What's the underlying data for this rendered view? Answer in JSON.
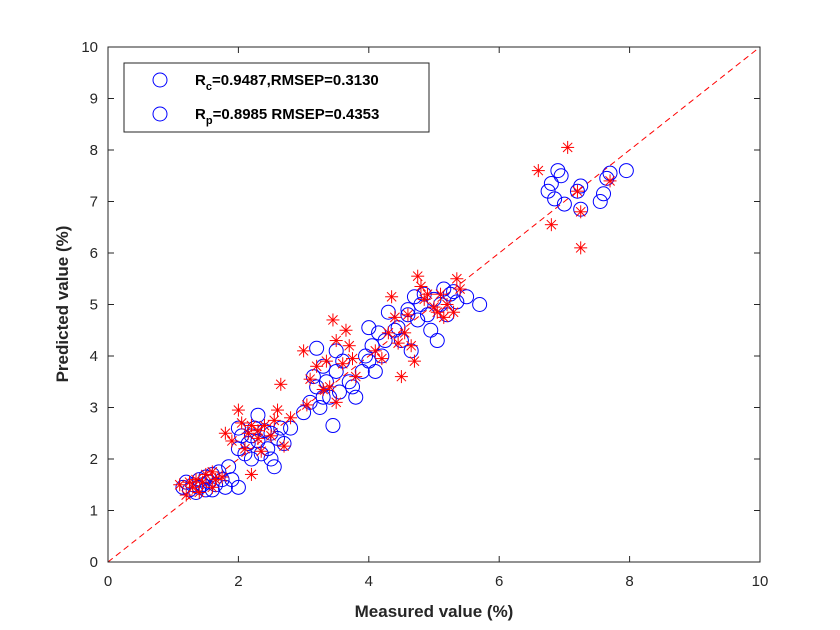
{
  "chart_data": {
    "type": "scatter",
    "title": "",
    "xlabel": "Measured value (%)",
    "ylabel": "Predicted value (%)",
    "xlim": [
      0,
      10
    ],
    "ylim": [
      0,
      10
    ],
    "xticks": [
      "0",
      "2",
      "4",
      "6",
      "8",
      "10"
    ],
    "yticks": [
      "0",
      "1",
      "2",
      "3",
      "4",
      "5",
      "6",
      "7",
      "8",
      "9",
      "10"
    ],
    "grid": false,
    "legend_position": "top-left",
    "reference_line": {
      "style": "dashed",
      "color": "#ff0000",
      "from": [
        0,
        0
      ],
      "to": [
        10,
        10
      ]
    },
    "legend": [
      {
        "main": "R",
        "sub": "c",
        "rest": "=0.9487,RMSEP=0.3130",
        "marker": "circle",
        "color": "#0000ff"
      },
      {
        "main": "R",
        "sub": "p",
        "rest": "=0.8985 RMSEP=0.4353",
        "marker": "circle",
        "color": "#0000ff"
      }
    ],
    "series": [
      {
        "marker": "circle",
        "color": "#0000ff",
        "points": [
          [
            1.15,
            1.45
          ],
          [
            1.2,
            1.55
          ],
          [
            1.25,
            1.4
          ],
          [
            1.3,
            1.5
          ],
          [
            1.35,
            1.35
          ],
          [
            1.4,
            1.6
          ],
          [
            1.45,
            1.5
          ],
          [
            1.5,
            1.65
          ],
          [
            1.55,
            1.55
          ],
          [
            1.6,
            1.7
          ],
          [
            1.65,
            1.5
          ],
          [
            1.7,
            1.75
          ],
          [
            1.75,
            1.6
          ],
          [
            1.8,
            1.45
          ],
          [
            1.9,
            1.6
          ],
          [
            1.85,
            1.85
          ],
          [
            2.0,
            1.45
          ],
          [
            1.5,
            1.4
          ],
          [
            1.4,
            1.45
          ],
          [
            1.6,
            1.4
          ],
          [
            2.0,
            2.2
          ],
          [
            2.05,
            2.45
          ],
          [
            2.1,
            2.1
          ],
          [
            2.15,
            2.3
          ],
          [
            2.2,
            2.0
          ],
          [
            2.25,
            2.6
          ],
          [
            2.3,
            2.35
          ],
          [
            2.35,
            2.1
          ],
          [
            2.4,
            2.55
          ],
          [
            2.45,
            2.2
          ],
          [
            2.5,
            2.0
          ],
          [
            2.55,
            1.85
          ],
          [
            2.6,
            2.4
          ],
          [
            2.65,
            2.6
          ],
          [
            2.7,
            2.3
          ],
          [
            2.3,
            2.85
          ],
          [
            2.5,
            2.5
          ],
          [
            2.2,
            2.45
          ],
          [
            2.0,
            2.6
          ],
          [
            2.8,
            2.6
          ],
          [
            3.0,
            2.9
          ],
          [
            3.1,
            3.1
          ],
          [
            3.15,
            3.6
          ],
          [
            3.2,
            3.4
          ],
          [
            3.25,
            3.0
          ],
          [
            3.3,
            3.8
          ],
          [
            3.35,
            3.5
          ],
          [
            3.4,
            3.2
          ],
          [
            3.45,
            2.65
          ],
          [
            3.5,
            3.7
          ],
          [
            3.55,
            3.3
          ],
          [
            3.6,
            3.9
          ],
          [
            3.7,
            3.5
          ],
          [
            3.75,
            3.4
          ],
          [
            3.8,
            3.2
          ],
          [
            3.9,
            3.7
          ],
          [
            3.95,
            4.0
          ],
          [
            3.2,
            4.15
          ],
          [
            3.5,
            4.1
          ],
          [
            3.3,
            3.2
          ],
          [
            4.0,
            3.9
          ],
          [
            4.05,
            4.2
          ],
          [
            4.1,
            3.7
          ],
          [
            4.15,
            4.45
          ],
          [
            4.2,
            4.0
          ],
          [
            4.3,
            4.85
          ],
          [
            4.4,
            4.5
          ],
          [
            4.5,
            4.3
          ],
          [
            4.6,
            4.9
          ],
          [
            4.65,
            4.1
          ],
          [
            4.7,
            5.15
          ],
          [
            4.75,
            4.7
          ],
          [
            4.8,
            5.0
          ],
          [
            4.85,
            5.2
          ],
          [
            4.9,
            4.8
          ],
          [
            4.95,
            4.5
          ],
          [
            5.0,
            5.1
          ],
          [
            5.05,
            4.3
          ],
          [
            5.1,
            5.0
          ],
          [
            5.2,
            4.8
          ],
          [
            5.25,
            5.2
          ],
          [
            5.3,
            5.25
          ],
          [
            5.35,
            5.05
          ],
          [
            5.5,
            5.15
          ],
          [
            5.7,
            5.0
          ],
          [
            4.45,
            4.55
          ],
          [
            4.6,
            4.8
          ],
          [
            5.15,
            5.3
          ],
          [
            4.25,
            4.3
          ],
          [
            4.0,
            4.55
          ],
          [
            6.75,
            7.2
          ],
          [
            6.8,
            7.35
          ],
          [
            6.85,
            7.05
          ],
          [
            6.9,
            7.6
          ],
          [
            6.95,
            7.5
          ],
          [
            7.2,
            7.2
          ],
          [
            7.25,
            6.85
          ],
          [
            7.25,
            7.3
          ],
          [
            7.55,
            7.0
          ],
          [
            7.6,
            7.15
          ],
          [
            7.65,
            7.45
          ],
          [
            7.7,
            7.55
          ],
          [
            7.95,
            7.6
          ],
          [
            7.0,
            6.95
          ]
        ]
      },
      {
        "marker": "asterisk",
        "color": "#ff0000",
        "points": [
          [
            1.1,
            1.5
          ],
          [
            1.2,
            1.3
          ],
          [
            1.25,
            1.55
          ],
          [
            1.3,
            1.45
          ],
          [
            1.35,
            1.6
          ],
          [
            1.45,
            1.55
          ],
          [
            1.5,
            1.7
          ],
          [
            1.6,
            1.75
          ],
          [
            1.65,
            1.6
          ],
          [
            1.75,
            1.65
          ],
          [
            1.8,
            2.5
          ],
          [
            1.9,
            2.35
          ],
          [
            1.6,
            1.45
          ],
          [
            1.4,
            1.35
          ],
          [
            2.0,
            2.95
          ],
          [
            2.05,
            2.7
          ],
          [
            2.1,
            2.2
          ],
          [
            2.15,
            2.5
          ],
          [
            2.2,
            1.7
          ],
          [
            2.3,
            2.4
          ],
          [
            2.35,
            2.15
          ],
          [
            2.4,
            2.65
          ],
          [
            2.5,
            2.45
          ],
          [
            2.55,
            2.75
          ],
          [
            2.6,
            2.95
          ],
          [
            2.65,
            3.45
          ],
          [
            2.7,
            2.25
          ],
          [
            2.8,
            2.8
          ],
          [
            2.3,
            2.55
          ],
          [
            2.2,
            2.65
          ],
          [
            3.0,
            4.1
          ],
          [
            3.05,
            3.05
          ],
          [
            3.1,
            3.55
          ],
          [
            3.2,
            3.8
          ],
          [
            3.3,
            3.35
          ],
          [
            3.35,
            3.9
          ],
          [
            3.45,
            4.7
          ],
          [
            3.5,
            3.1
          ],
          [
            3.6,
            3.85
          ],
          [
            3.65,
            4.5
          ],
          [
            3.7,
            4.2
          ],
          [
            3.75,
            3.95
          ],
          [
            3.8,
            3.6
          ],
          [
            3.5,
            4.3
          ],
          [
            3.4,
            3.4
          ],
          [
            4.1,
            4.1
          ],
          [
            4.2,
            3.95
          ],
          [
            4.3,
            4.45
          ],
          [
            4.35,
            5.15
          ],
          [
            4.4,
            4.75
          ],
          [
            4.45,
            4.25
          ],
          [
            4.5,
            3.6
          ],
          [
            4.55,
            4.45
          ],
          [
            4.6,
            4.8
          ],
          [
            4.7,
            3.9
          ],
          [
            4.75,
            5.55
          ],
          [
            4.8,
            5.35
          ],
          [
            4.85,
            5.1
          ],
          [
            4.9,
            5.2
          ],
          [
            5.0,
            4.95
          ],
          [
            5.05,
            4.85
          ],
          [
            5.1,
            5.2
          ],
          [
            5.15,
            4.75
          ],
          [
            5.2,
            5.0
          ],
          [
            5.3,
            4.85
          ],
          [
            5.35,
            5.5
          ],
          [
            5.4,
            5.3
          ],
          [
            4.65,
            4.2
          ],
          [
            6.6,
            7.6
          ],
          [
            6.8,
            6.55
          ],
          [
            7.05,
            8.05
          ],
          [
            7.2,
            7.2
          ],
          [
            7.25,
            6.8
          ],
          [
            7.25,
            6.1
          ],
          [
            7.7,
            7.4
          ]
        ]
      }
    ]
  }
}
